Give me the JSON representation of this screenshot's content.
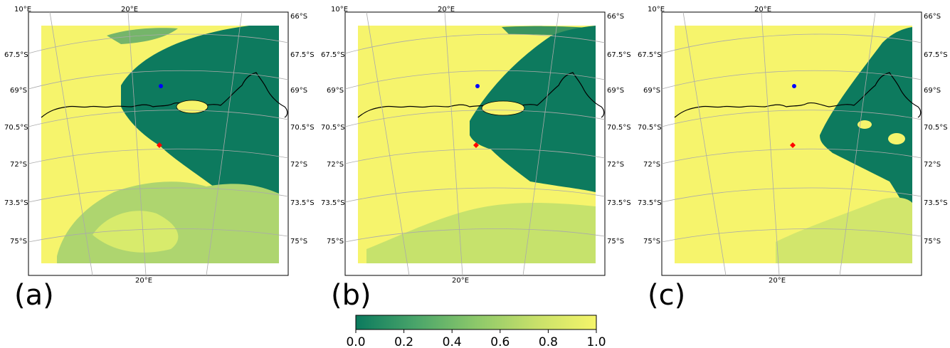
{
  "panels": [
    {
      "id": "a",
      "label": "(a)"
    },
    {
      "id": "b",
      "label": "(b)"
    },
    {
      "id": "c",
      "label": "(c)"
    }
  ],
  "axis_labels": {
    "lon_top_left": "10°E",
    "lon_top_mid": "20°E",
    "lon_bottom": "20°E",
    "lat_top_right": "66°S",
    "lats": [
      "67.5°S",
      "69°S",
      "70.5°S",
      "72°S",
      "73.5°S",
      "75°S"
    ]
  },
  "colorbar": {
    "ticks": [
      "0.0",
      "0.2",
      "0.4",
      "0.6",
      "0.8",
      "1.0"
    ],
    "colors": [
      "#0b7a5e",
      "#4aa56a",
      "#8cc86a",
      "#c8e06a",
      "#f5f56a"
    ]
  },
  "markers": {
    "blue": "#0000ff",
    "red": "#ff0000"
  },
  "colors": {
    "dark": "#0d7a5e",
    "yellow": "#f6f46c",
    "pale": "#aed56f"
  }
}
